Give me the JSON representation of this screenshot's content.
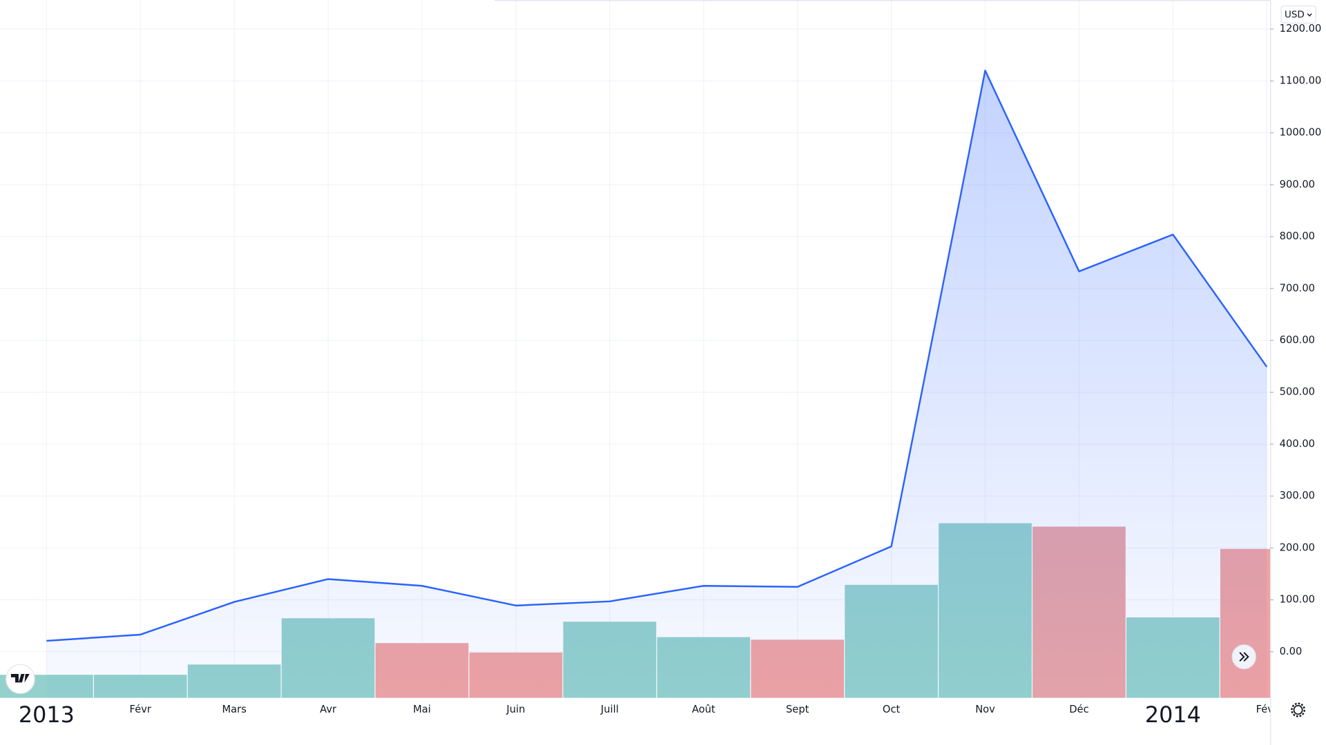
{
  "chart_data": {
    "type": "line",
    "currency": "USD",
    "categories": [
      "2013",
      "Févr",
      "Mars",
      "Avr",
      "Mai",
      "Juin",
      "Juill",
      "Août",
      "Sept",
      "Oct",
      "Nov",
      "Déc",
      "2014",
      "Févr"
    ],
    "values": [
      21,
      33,
      96,
      140,
      127,
      89,
      97,
      127,
      125,
      203,
      1120,
      733,
      804,
      549
    ],
    "color": "#2962ff",
    "ylim": [
      -89,
      1256
    ],
    "yticks": [
      {
        "value": 0,
        "label": "0.00"
      },
      {
        "value": 100,
        "label": "100.00"
      },
      {
        "value": 200,
        "label": "200.00"
      },
      {
        "value": 300,
        "label": "300.00"
      },
      {
        "value": 400,
        "label": "400.00"
      },
      {
        "value": 500,
        "label": "500.00"
      },
      {
        "value": 600,
        "label": "600.00"
      },
      {
        "value": 700,
        "label": "700.00"
      },
      {
        "value": 800,
        "label": "800.00"
      },
      {
        "value": 900,
        "label": "900.00"
      },
      {
        "value": 1000,
        "label": "1000.00"
      },
      {
        "value": 1100,
        "label": "1100.00"
      },
      {
        "value": 1200,
        "label": "1200.00"
      }
    ],
    "grid": true,
    "volume": {
      "values": [
        27,
        27,
        39,
        93,
        64,
        53,
        89,
        71,
        68,
        132,
        204,
        200,
        94,
        174
      ],
      "colors": [
        "#94d1cc",
        "#94d1cc",
        "#94d1cc",
        "#94d1cc",
        "#f0a3a2",
        "#f0a3a2",
        "#94d1cc",
        "#94d1cc",
        "#f0a3a2",
        "#94d1cc",
        "#94d1cc",
        "#e8a4a6",
        "#94d1cc",
        "#f0a3a2"
      ],
      "y2lim": [
        0,
        815
      ]
    }
  }
}
